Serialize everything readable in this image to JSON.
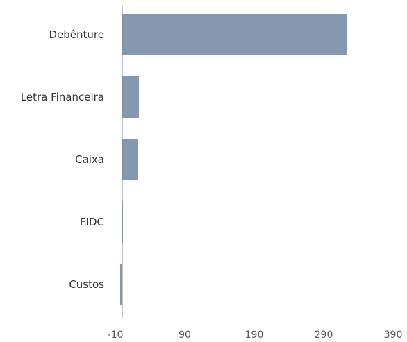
{
  "chart_data": {
    "type": "bar",
    "orientation": "horizontal",
    "title": "",
    "xlabel": "",
    "ylabel": "",
    "categories": [
      "Debênture",
      "Letra Financeira",
      "Caixa",
      "FIDC",
      "Custos"
    ],
    "values": [
      323,
      24,
      22,
      1,
      -3
    ],
    "xlim": [
      -10,
      390
    ],
    "xticks": [
      "-10",
      "90",
      "190",
      "290",
      "390"
    ],
    "grid": false,
    "legend": "none",
    "bar_color": "#8598b0",
    "axis_color": "#888888"
  }
}
